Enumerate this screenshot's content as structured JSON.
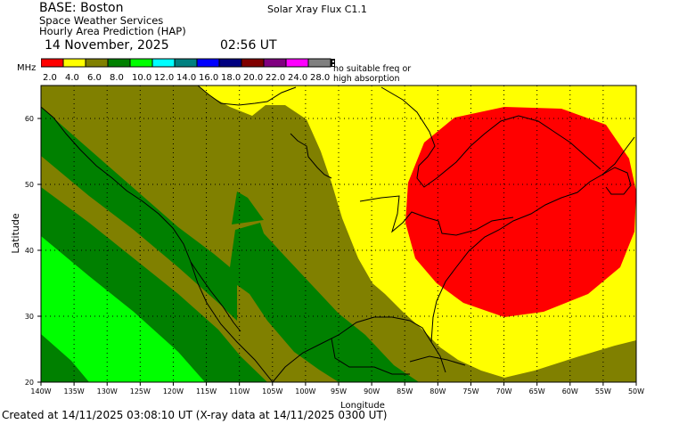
{
  "header": {
    "base": "BASE: Boston",
    "line1": "Space Weather Services",
    "line2": "Hourly Area Prediction (HAP)",
    "date": "14 November, 2025",
    "time": "02:56 UT",
    "flux": "Solar Xray Flux C1.1"
  },
  "legend": {
    "unit": "MHz",
    "items": [
      {
        "label": "2.0",
        "color": "#ff0000"
      },
      {
        "label": "4.0",
        "color": "#ffff00"
      },
      {
        "label": "6.0",
        "color": "#808000"
      },
      {
        "label": "8.0",
        "color": "#008000"
      },
      {
        "label": "10.0",
        "color": "#00ff00"
      },
      {
        "label": "12.0",
        "color": "#00ffff"
      },
      {
        "label": "14.0",
        "color": "#008080"
      },
      {
        "label": "16.0",
        "color": "#0000ff"
      },
      {
        "label": "18.0",
        "color": "#000080"
      },
      {
        "label": "20.0",
        "color": "#800000"
      },
      {
        "label": "22.0",
        "color": "#800080"
      },
      {
        "label": "24.0",
        "color": "#ff00ff"
      },
      {
        "label": "28.0",
        "color": "#808080"
      }
    ],
    "no_freq_line1": "no suitable freq or",
    "no_freq_line2": "high absorption"
  },
  "map": {
    "ylabel": "Latitude",
    "xlabel": "Longitude",
    "lat_ticks": [
      "20",
      "30",
      "40",
      "50",
      "60"
    ],
    "lon_ticks": [
      "140W",
      "135W",
      "130W",
      "125W",
      "120W",
      "115W",
      "110W",
      "105W",
      "100W",
      "95W",
      "90W",
      "85W",
      "80W",
      "75W",
      "70W",
      "65W",
      "60W",
      "55W",
      "50W"
    ],
    "lon_range": [
      -140,
      -50
    ],
    "lat_range": [
      20,
      65
    ]
  },
  "footer": "Created at 14/11/2025 03:08:10 UT (X-ray data at 14/11/2025 0300 UT)"
}
